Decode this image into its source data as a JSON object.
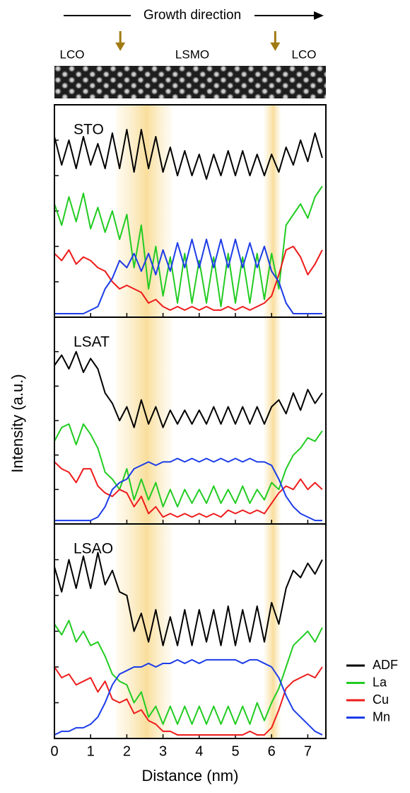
{
  "chart_data": {
    "type": "line",
    "top_label": "Growth direction",
    "layer_labels": [
      "LCO",
      "LSMO",
      "LCO"
    ],
    "interfaces": [
      1.82,
      6.1
    ],
    "highlight_bands": [
      [
        1.7,
        3.25
      ],
      [
        5.8,
        6.25
      ]
    ],
    "xlabel": "Distance (nm)",
    "ylabel": "Intensity (a.u.)",
    "xlim": [
      0,
      7.5
    ],
    "xticks": [
      0,
      1,
      2,
      3,
      4,
      5,
      6,
      7
    ],
    "ylim": [
      0,
      6
    ],
    "yticks": [
      1,
      2,
      3,
      4,
      5
    ],
    "legend": [
      {
        "name": "ADF",
        "color": "#000000"
      },
      {
        "name": "La",
        "color": "#22cc22"
      },
      {
        "name": "Cu",
        "color": "#ee1c1c"
      },
      {
        "name": "Mn",
        "color": "#1c3ce8"
      }
    ],
    "x": [
      0,
      0.2,
      0.4,
      0.6,
      0.8,
      1,
      1.2,
      1.4,
      1.6,
      1.8,
      2,
      2.2,
      2.4,
      2.6,
      2.8,
      3,
      3.2,
      3.4,
      3.6,
      3.8,
      4,
      4.2,
      4.4,
      4.6,
      4.8,
      5,
      5.2,
      5.4,
      5.6,
      5.8,
      6,
      6.2,
      6.4,
      6.6,
      6.8,
      7,
      7.2,
      7.4
    ],
    "panels": [
      {
        "label": "STO",
        "values": [
          [
            5.1,
            4.3,
            5.0,
            4.2,
            5.1,
            4.3,
            4.9,
            4.2,
            5.2,
            4.2,
            5.3,
            4.1,
            5.3,
            4.2,
            5.1,
            4.1,
            4.8,
            4.0,
            4.7,
            4.0,
            4.6,
            3.9,
            4.6,
            4.0,
            4.7,
            4.0,
            4.7,
            4.0,
            4.6,
            4.0,
            4.6,
            4.1,
            4.8,
            4.3,
            5.0,
            4.4,
            5.2,
            4.5
          ],
          [
            3.2,
            2.6,
            3.4,
            2.7,
            3.5,
            2.5,
            3.1,
            2.4,
            3.0,
            2.2,
            2.9,
            1.4,
            2.6,
            0.8,
            2.0,
            0.6,
            1.7,
            0.4,
            1.8,
            0.4,
            1.6,
            0.4,
            1.7,
            0.3,
            1.8,
            0.4,
            1.7,
            0.4,
            1.8,
            0.5,
            1.8,
            0.8,
            2.6,
            2.9,
            3.2,
            2.8,
            3.4,
            3.7
          ],
          [
            1.8,
            1.6,
            1.9,
            1.5,
            1.7,
            1.6,
            1.4,
            1.3,
            1.0,
            0.8,
            0.9,
            0.8,
            0.7,
            0.4,
            0.5,
            0.3,
            0.2,
            0.3,
            0.2,
            0.3,
            0.2,
            0.3,
            0.2,
            0.2,
            0.3,
            0.2,
            0.3,
            0.2,
            0.3,
            0.4,
            0.6,
            1.2,
            1.9,
            2.0,
            1.7,
            1.2,
            1.5,
            1.9
          ],
          [
            0.1,
            0.1,
            0.1,
            0.1,
            0.1,
            0.2,
            0.3,
            0.8,
            1.1,
            1.6,
            1.4,
            1.8,
            1.3,
            1.8,
            1.2,
            1.9,
            1.3,
            2.1,
            1.4,
            2.2,
            1.4,
            2.2,
            1.4,
            2.2,
            1.4,
            2.2,
            1.4,
            2.1,
            1.4,
            2.0,
            1.3,
            1.0,
            0.4,
            0.1,
            0.1,
            0.1,
            0.1,
            0.1
          ]
        ]
      },
      {
        "label": "LSAT",
        "values": [
          [
            4.6,
            4.9,
            4.5,
            5.0,
            4.4,
            4.8,
            4.5,
            3.8,
            3.5,
            3.0,
            3.4,
            2.8,
            3.6,
            2.9,
            3.4,
            2.8,
            3.3,
            2.9,
            3.3,
            2.9,
            3.3,
            2.9,
            3.4,
            2.9,
            3.4,
            2.9,
            3.4,
            2.9,
            3.4,
            2.9,
            3.4,
            3.6,
            3.2,
            3.8,
            3.3,
            3.9,
            3.5,
            3.8
          ],
          [
            2.4,
            2.8,
            2.9,
            2.3,
            2.9,
            2.6,
            2.2,
            1.5,
            1.3,
            1.0,
            1.6,
            0.7,
            1.3,
            0.7,
            1.2,
            0.5,
            1.0,
            0.5,
            1.0,
            0.6,
            1.0,
            0.6,
            1.1,
            0.6,
            1.0,
            0.6,
            1.1,
            0.6,
            1.0,
            0.7,
            1.2,
            1.0,
            1.6,
            2.0,
            2.2,
            2.5,
            2.4,
            2.7
          ],
          [
            1.8,
            1.6,
            1.5,
            1.2,
            1.6,
            1.6,
            1.1,
            0.9,
            0.8,
            1.0,
            0.9,
            0.5,
            0.8,
            0.3,
            0.5,
            0.2,
            0.3,
            0.2,
            0.3,
            0.2,
            0.3,
            0.2,
            0.3,
            0.2,
            0.4,
            0.3,
            0.4,
            0.3,
            0.4,
            0.3,
            0.6,
            0.9,
            1.1,
            1.0,
            1.3,
            1.0,
            1.2,
            1.0
          ],
          [
            0.1,
            0.1,
            0.1,
            0.1,
            0.1,
            0.1,
            0.2,
            0.5,
            1.0,
            1.2,
            1.3,
            1.6,
            1.7,
            1.8,
            1.7,
            1.8,
            1.8,
            1.9,
            1.8,
            1.9,
            1.8,
            1.9,
            1.8,
            1.9,
            1.8,
            1.9,
            1.8,
            1.9,
            1.8,
            1.8,
            1.7,
            1.3,
            0.8,
            0.5,
            0.3,
            0.2,
            0.1,
            0.1
          ]
        ]
      },
      {
        "label": "LSAO",
        "values": [
          [
            4.8,
            4.1,
            5.0,
            4.2,
            5.1,
            4.2,
            5.2,
            4.3,
            4.7,
            4.1,
            4.0,
            3.0,
            3.5,
            2.7,
            3.6,
            2.6,
            3.4,
            2.6,
            3.6,
            2.6,
            3.6,
            2.7,
            3.6,
            2.6,
            3.7,
            2.6,
            3.6,
            2.7,
            3.7,
            2.7,
            3.8,
            3.2,
            4.2,
            4.7,
            4.5,
            4.9,
            4.6,
            5.0
          ],
          [
            3.2,
            2.9,
            3.3,
            2.7,
            3.0,
            2.6,
            2.7,
            2.3,
            1.8,
            1.6,
            1.5,
            1.0,
            1.3,
            0.6,
            0.9,
            0.4,
            0.9,
            0.4,
            0.9,
            0.4,
            0.9,
            0.4,
            0.9,
            0.4,
            0.9,
            0.4,
            0.9,
            0.4,
            1.0,
            0.5,
            1.0,
            1.4,
            2.0,
            2.6,
            2.8,
            3.0,
            2.7,
            3.1
          ],
          [
            2.0,
            1.7,
            1.8,
            1.5,
            1.6,
            1.7,
            1.3,
            1.6,
            1.1,
            1.0,
            1.1,
            0.7,
            0.8,
            0.5,
            0.4,
            0.2,
            0.2,
            0.1,
            0.1,
            0.1,
            0.1,
            0.1,
            0.1,
            0.1,
            0.1,
            0.1,
            0.1,
            0.2,
            0.1,
            0.1,
            0.3,
            0.8,
            1.4,
            1.6,
            1.7,
            1.8,
            1.7,
            2.0
          ],
          [
            0.1,
            0.2,
            0.2,
            0.3,
            0.3,
            0.4,
            0.6,
            1.0,
            1.5,
            1.8,
            1.9,
            2.0,
            2.0,
            2.1,
            2.0,
            2.1,
            2.1,
            2.2,
            2.1,
            2.2,
            2.1,
            2.2,
            2.2,
            2.2,
            2.2,
            2.2,
            2.1,
            2.2,
            2.2,
            2.1,
            2.0,
            1.7,
            1.2,
            0.8,
            0.6,
            0.4,
            0.2,
            0.1
          ]
        ]
      }
    ]
  }
}
